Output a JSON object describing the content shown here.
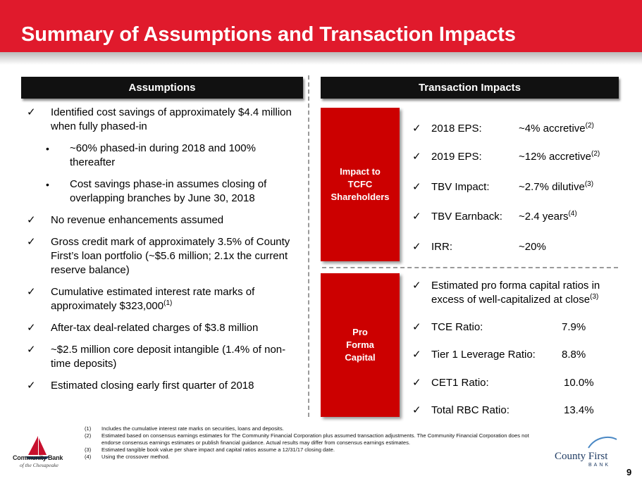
{
  "title": "Summary of Assumptions and Transaction Impacts",
  "assumptions": {
    "header": "Assumptions",
    "items": [
      {
        "marker": "✓",
        "text": "Identified cost savings of approximately $4.4 million when fully phased-in"
      },
      {
        "marker": "•",
        "text": "~60% phased-in during 2018 and 100% thereafter"
      },
      {
        "marker": "•",
        "text": "Cost savings phase-in assumes closing of overlapping branches by June 30, 2018"
      },
      {
        "marker": "✓",
        "text": "No revenue enhancements assumed"
      },
      {
        "marker": "✓",
        "text": "Gross credit mark of approximately 3.5% of County First’s loan portfolio (~$5.6 million; 2.1x the current reserve balance)"
      },
      {
        "marker": "✓",
        "text": "Cumulative estimated interest rate marks of approximately $323,000",
        "sup": "(1)"
      },
      {
        "marker": "✓",
        "text": "After-tax deal-related charges of $3.8 million"
      },
      {
        "marker": "✓",
        "text": "~$2.5 million core deposit intangible (1.4% of non-time deposits)"
      },
      {
        "marker": "✓",
        "text": "Estimated closing early first quarter of 2018"
      }
    ]
  },
  "impacts": {
    "header": "Transaction Impacts",
    "shareholders": {
      "label_lines": [
        "Impact to",
        "TCFC",
        "Shareholders"
      ],
      "rows": [
        {
          "label": "2018 EPS:",
          "value": "~4% accretive",
          "sup": "(2)"
        },
        {
          "label": "2019 EPS:",
          "value": "~12% accretive",
          "sup": "(2)"
        },
        {
          "label": "TBV Impact:",
          "value": "~2.7% dilutive",
          "sup": "(3)"
        },
        {
          "label": "TBV Earnback:",
          "value": "~2.4 years",
          "sup": "(4)"
        },
        {
          "label": "IRR:",
          "value": "~20%",
          "sup": ""
        }
      ]
    },
    "capital": {
      "label_lines": [
        "Pro",
        "Forma",
        "Capital"
      ],
      "intro_line1": "Estimated pro forma capital ratios in",
      "intro_line2": "excess of well-capitalized at close",
      "intro_sup": "(3)",
      "rows": [
        {
          "label": "TCE Ratio:",
          "value": "7.9%"
        },
        {
          "label": "Tier 1 Leverage Ratio:",
          "value": "8.8%"
        },
        {
          "label": "CET1 Ratio:",
          "value": "10.0%"
        },
        {
          "label": "Total RBC Ratio:",
          "value": "13.4%"
        }
      ]
    }
  },
  "footnotes": [
    {
      "num": "(1)",
      "text": "Includes the cumulative interest rate marks on securities, loans and deposits."
    },
    {
      "num": "(2)",
      "text": "Estimated based on consensus earnings estimates for The Community Financial Corporation plus assumed transaction adjustments. The Community Financial Corporation does not endorse consensus earnings estimates or publish financial guidance. Actual results may differ from consensus earnings estimates."
    },
    {
      "num": "(3)",
      "text": "Estimated tangible book value per share impact and capital ratios assume a 12/31/17 closing date."
    },
    {
      "num": "(4)",
      "text": "Using the crossover method."
    }
  ],
  "logos": {
    "left_name": "Community Bank",
    "left_sub": "of the Chesapeake",
    "right_name": "County First",
    "right_sub": "BANK"
  },
  "page_number": "9",
  "colors": {
    "banner": "#e01a2c",
    "box_red": "#cc0000",
    "header_black": "#111111",
    "logo_navy": "#1f3b63"
  }
}
